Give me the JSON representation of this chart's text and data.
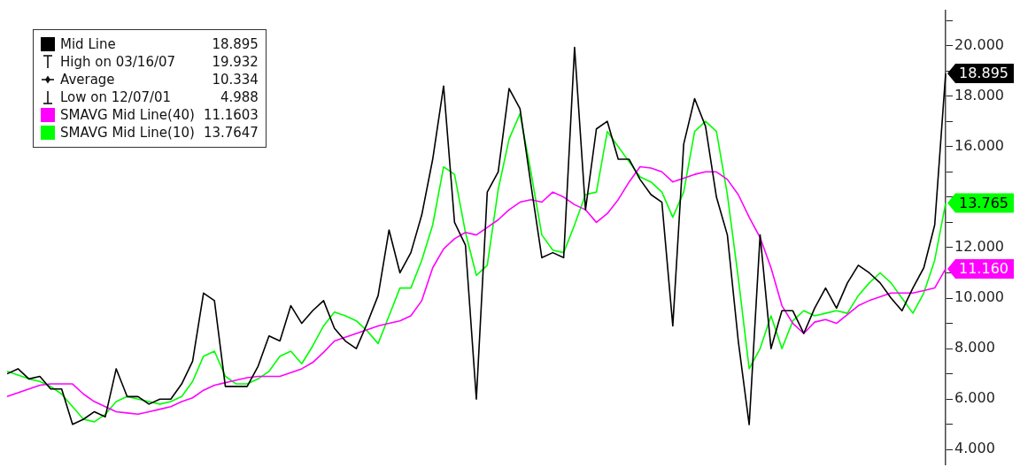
{
  "chart_data": {
    "type": "line",
    "legend": "top left",
    "marker": "none",
    "tick_labels": "y",
    "ylim": [
      3.4,
      21.4
    ],
    "categories": [
      null,
      null,
      null,
      null,
      null,
      null,
      null,
      null,
      null,
      null,
      null,
      null,
      null,
      null,
      null,
      null,
      null,
      null,
      null,
      null,
      null,
      null,
      null,
      null,
      null,
      null,
      null,
      null,
      null,
      null,
      null,
      null,
      null,
      null,
      null,
      null,
      null,
      null,
      null,
      null,
      null,
      null,
      null,
      null,
      null,
      null,
      null,
      null,
      null,
      null,
      null,
      null,
      null,
      null,
      null,
      null,
      null,
      null,
      null,
      null,
      null,
      null,
      null,
      null,
      null,
      null,
      null,
      null,
      null,
      null,
      null,
      null,
      null,
      null,
      null,
      null,
      null,
      null,
      null,
      null,
      null,
      null,
      null,
      null,
      null,
      null,
      null
    ],
    "yticks": [
      {
        "value": 4,
        "label": "4.000"
      },
      {
        "value": 5,
        "label": null
      },
      {
        "value": 6,
        "label": "6.000"
      },
      {
        "value": 7,
        "label": null
      },
      {
        "value": 8,
        "label": "8.000"
      },
      {
        "value": 9,
        "label": null
      },
      {
        "value": 10,
        "label": "10.000"
      },
      {
        "value": 11,
        "label": null
      },
      {
        "value": 12,
        "label": "12.000"
      },
      {
        "value": 13,
        "label": null
      },
      {
        "value": 14,
        "label": null
      },
      {
        "value": 15,
        "label": null
      },
      {
        "value": 16,
        "label": "16.000"
      },
      {
        "value": 17,
        "label": null
      },
      {
        "value": 18,
        "label": "18.000"
      },
      {
        "value": 19,
        "label": null
      },
      {
        "value": 20,
        "label": "20.000"
      },
      {
        "value": 21,
        "label": null
      }
    ],
    "series": [
      {
        "name": "Mid Line 18.895",
        "color": "#000000",
        "values": [
          7.0,
          7.2,
          6.8,
          6.9,
          6.4,
          6.4,
          5.0,
          5.2,
          5.5,
          5.3,
          7.2,
          6.1,
          6.1,
          5.8,
          6.0,
          6.0,
          6.6,
          7.5,
          10.2,
          9.9,
          6.5,
          6.5,
          6.5,
          7.3,
          8.5,
          8.3,
          9.7,
          9.0,
          9.5,
          9.9,
          8.8,
          8.3,
          8.0,
          9.0,
          10.1,
          12.7,
          11.0,
          11.8,
          13.3,
          15.5,
          18.4,
          13.0,
          12.1,
          6.0,
          14.2,
          15.0,
          18.3,
          17.5,
          14.5,
          11.6,
          11.8,
          11.6,
          19.932,
          13.5,
          16.7,
          17.0,
          15.5,
          15.5,
          14.7,
          14.1,
          13.8,
          8.9,
          16.1,
          17.9,
          16.8,
          14.0,
          12.5,
          8.3,
          4.988,
          12.5,
          8.0,
          9.5,
          9.5,
          8.6,
          9.6,
          10.4,
          9.6,
          10.6,
          11.3,
          11.0,
          10.6,
          10.0,
          9.5,
          10.4,
          11.2,
          12.9,
          18.895
        ]
      },
      {
        "name": "SMAVG Mid Line(40) 11.1603",
        "color": "#ff00ff",
        "values": [
          6.1,
          6.25,
          6.4,
          6.55,
          6.6,
          6.6,
          6.6,
          6.2,
          5.9,
          5.7,
          5.5,
          5.45,
          5.4,
          5.5,
          5.6,
          5.7,
          5.9,
          6.05,
          6.35,
          6.55,
          6.65,
          6.75,
          6.85,
          6.9,
          6.9,
          6.9,
          7.05,
          7.2,
          7.45,
          7.85,
          8.3,
          8.45,
          8.6,
          8.75,
          8.9,
          9.0,
          9.1,
          9.3,
          9.9,
          11.2,
          11.95,
          12.35,
          12.6,
          12.5,
          12.8,
          13.1,
          13.5,
          13.8,
          13.9,
          13.8,
          14.2,
          14.0,
          13.7,
          13.5,
          13.0,
          13.35,
          13.9,
          14.6,
          15.2,
          15.15,
          15.0,
          14.6,
          14.75,
          14.9,
          15.0,
          15.0,
          14.7,
          14.1,
          13.2,
          12.4,
          11.2,
          9.7,
          9.0,
          8.6,
          9.05,
          9.15,
          9.0,
          9.35,
          9.7,
          9.9,
          10.05,
          10.2,
          10.2,
          10.2,
          10.3,
          10.4,
          11.16
        ]
      },
      {
        "name": "SMAVG Mid Line(10) 13.7647",
        "color": "#00ff00",
        "values": [
          7.1,
          6.95,
          6.8,
          6.7,
          6.5,
          6.2,
          5.7,
          5.2,
          5.1,
          5.4,
          5.9,
          6.1,
          6.0,
          5.9,
          5.8,
          5.9,
          6.1,
          6.7,
          7.7,
          7.9,
          6.9,
          6.6,
          6.6,
          6.8,
          7.1,
          7.7,
          7.9,
          7.4,
          8.1,
          8.9,
          9.45,
          9.3,
          9.1,
          8.7,
          8.2,
          9.3,
          10.4,
          10.4,
          11.5,
          12.9,
          15.2,
          14.9,
          12.6,
          10.9,
          11.3,
          14.3,
          16.3,
          17.3,
          15.0,
          12.5,
          11.9,
          11.8,
          12.9,
          14.1,
          14.2,
          16.6,
          16.0,
          15.4,
          14.8,
          14.6,
          14.2,
          13.2,
          14.2,
          16.6,
          17.0,
          16.6,
          14.1,
          10.8,
          7.2,
          8.0,
          9.3,
          8.0,
          9.1,
          9.5,
          9.3,
          9.4,
          9.5,
          9.4,
          10.1,
          10.6,
          11.0,
          10.6,
          10.0,
          9.4,
          10.2,
          11.5,
          13.765
        ]
      }
    ],
    "annotations": [
      "High on 03/16/07 19.932",
      "Average 10.334",
      "Low on 12/07/01 4.988",
      "18.895",
      "11.160",
      "13.765"
    ]
  }
}
